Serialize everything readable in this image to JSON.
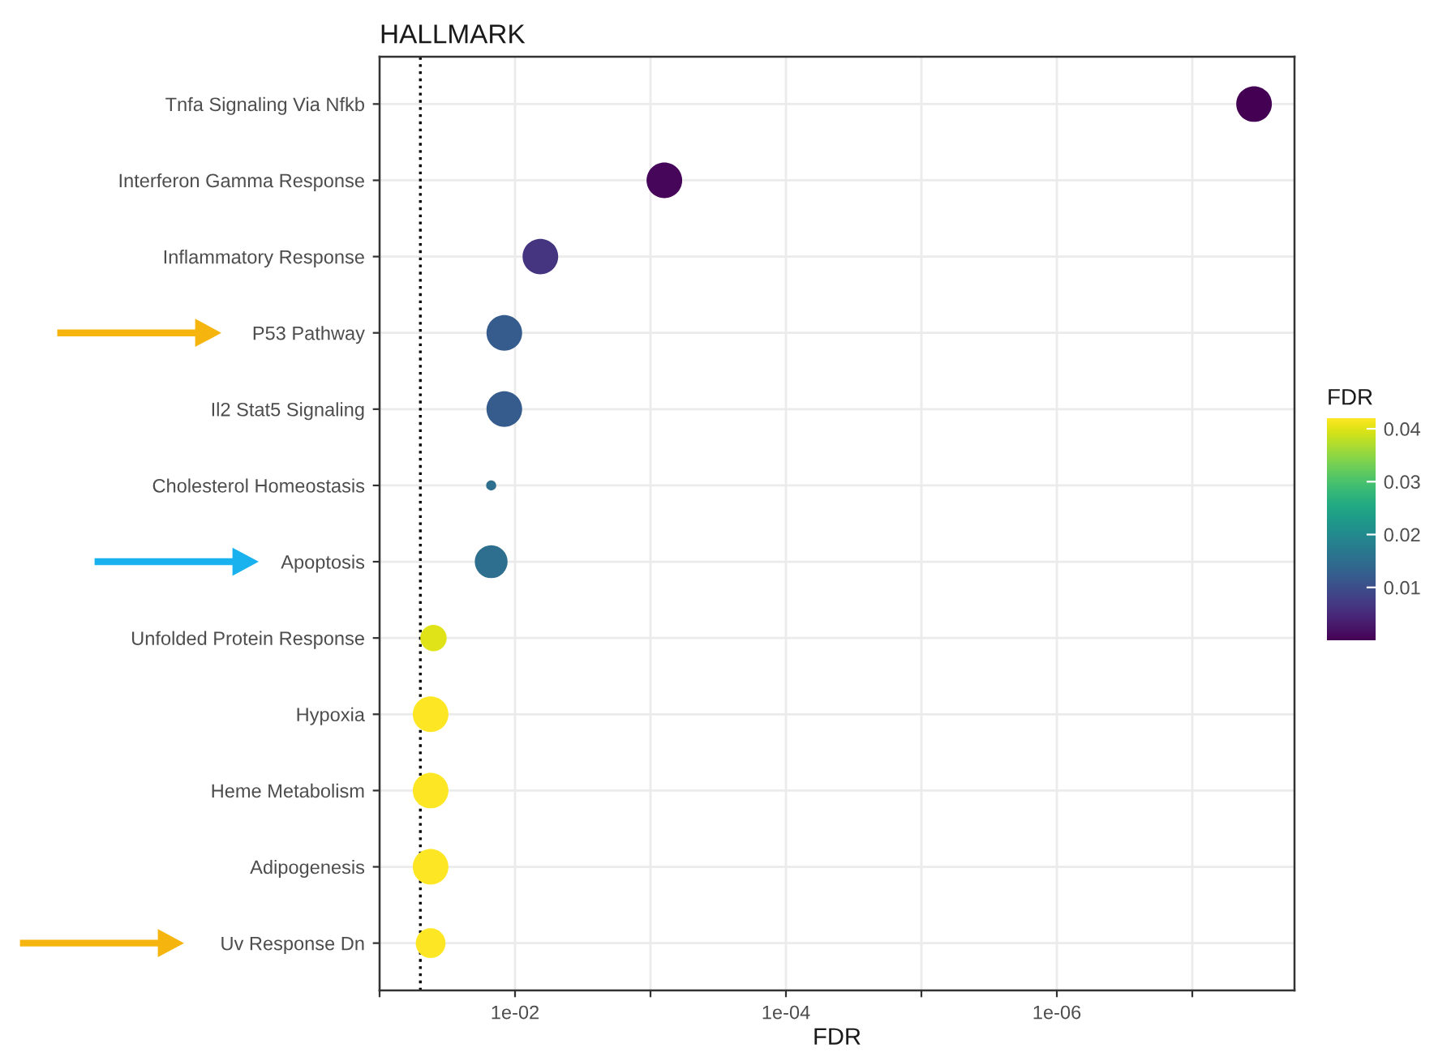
{
  "chart_data": {
    "type": "bubble",
    "title": "HALLMARK",
    "xlabel": "FDR",
    "clabel": "FDR",
    "orientation": "horizontal",
    "categories": [
      "Tnfa Signaling Via Nfkb",
      "Interferon Gamma Response",
      "Inflammatory Response",
      "P53 Pathway",
      "Il2 Stat5 Signaling",
      "Cholesterol Homeostasis",
      "Apoptosis",
      "Unfolded Protein Response",
      "Hypoxia",
      "Heme Metabolism",
      "Adipogenesis",
      "Uv Response Dn"
    ],
    "values": [
      3.5e-08,
      0.00079,
      0.0065,
      0.012,
      0.012,
      0.015,
      0.015,
      0.04,
      0.042,
      0.042,
      0.042,
      0.042
    ],
    "cvalues": [
      3.5e-08,
      0.00079,
      0.0065,
      0.012,
      0.012,
      0.015,
      0.015,
      0.04,
      0.042,
      0.042,
      0.042,
      0.042
    ],
    "sizes": [
      1,
      1,
      1,
      1,
      1,
      0.08,
      0.85,
      0.55,
      1,
      1,
      1,
      0.7
    ],
    "log": "x",
    "xlim": [
      0.1,
      1.76e-08
    ],
    "xticks": [
      {
        "value": 0.1,
        "label": null
      },
      {
        "value": 0.01,
        "label": "1e-02"
      },
      {
        "value": 0.001,
        "label": null
      },
      {
        "value": 0.0001,
        "label": "1e-04"
      },
      {
        "value": 1e-05,
        "label": null
      },
      {
        "value": 1e-06,
        "label": "1e-06"
      },
      {
        "value": 1e-07,
        "label": null
      }
    ],
    "clim": [
      0,
      0.042
    ],
    "cticks": [
      0.01,
      0.02,
      0.03,
      0.04
    ],
    "ref_lines": [
      {
        "axis": "x",
        "value": 0.05,
        "label": null,
        "color": "#000000",
        "line_style": "dotted"
      }
    ],
    "grid": true
  }
}
